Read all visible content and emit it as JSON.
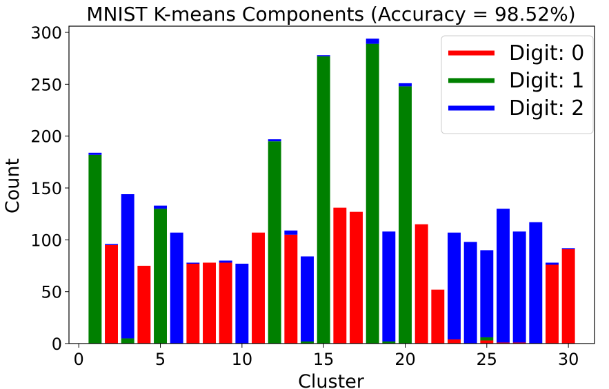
{
  "chart_data": {
    "type": "bar",
    "stacked": true,
    "title": "MNIST K-means Components (Accuracy = 98.52%)",
    "xlabel": "Cluster",
    "ylabel": "Count",
    "xlim": [
      -0.6,
      31.6
    ],
    "ylim": [
      0,
      306
    ],
    "x_ticks": [
      0,
      5,
      10,
      15,
      20,
      25,
      30
    ],
    "y_ticks": [
      0,
      50,
      100,
      150,
      200,
      250,
      300
    ],
    "legend_position": "upper right",
    "grid": false,
    "x": [
      1,
      2,
      3,
      4,
      5,
      6,
      7,
      8,
      9,
      10,
      11,
      12,
      13,
      14,
      15,
      16,
      17,
      18,
      19,
      20,
      21,
      22,
      23,
      24,
      25,
      26,
      27,
      28,
      29,
      30
    ],
    "series": [
      {
        "name": "Digit: 0",
        "color": "#ff0000",
        "values": [
          0,
          95,
          0,
          75,
          0,
          0,
          77,
          78,
          78,
          0,
          107,
          0,
          105,
          0,
          0,
          131,
          127,
          0,
          0,
          0,
          115,
          52,
          4,
          0,
          3,
          1,
          1,
          0,
          76,
          91
        ]
      },
      {
        "name": "Digit: 1",
        "color": "#008000",
        "values": [
          182,
          0,
          5,
          0,
          130,
          0,
          0,
          0,
          0,
          0,
          0,
          195,
          0,
          2,
          277,
          0,
          0,
          289,
          2,
          248,
          0,
          0,
          0,
          0,
          3,
          0,
          0,
          0,
          0,
          0
        ]
      },
      {
        "name": "Digit: 2",
        "color": "#0000ff",
        "values": [
          2,
          1,
          139,
          0,
          3,
          107,
          1,
          0,
          2,
          77,
          0,
          2,
          4,
          82,
          1,
          0,
          0,
          5,
          106,
          3,
          0,
          0,
          103,
          98,
          84,
          129,
          107,
          117,
          2,
          1
        ]
      }
    ]
  }
}
